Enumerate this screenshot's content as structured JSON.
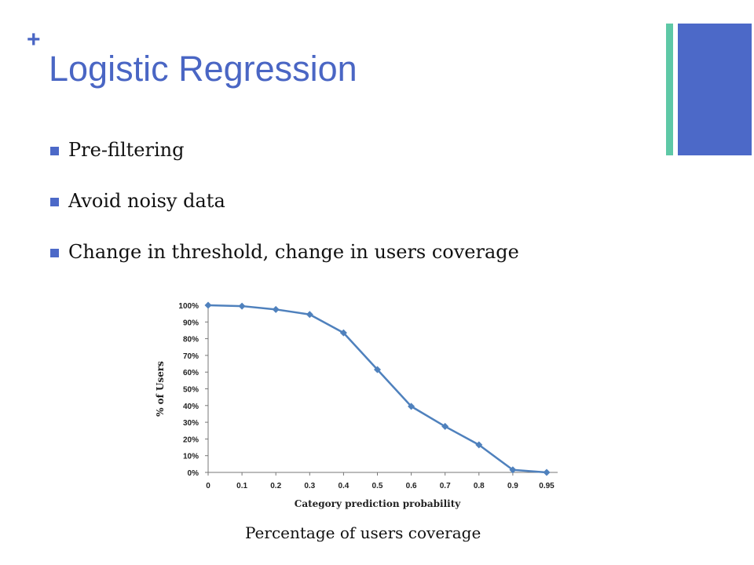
{
  "slide": {
    "marker": "+",
    "title": "Logistic Regression",
    "accent_colors": {
      "teal": "#5ec8a6",
      "blue": "#4c69c8",
      "title": "#4a66c4"
    },
    "bullets": [
      {
        "text": "Pre-filtering"
      },
      {
        "text": "Avoid noisy data"
      },
      {
        "text": "Change in threshold, change in users coverage"
      }
    ],
    "caption": "Percentage of users coverage"
  },
  "chart_data": {
    "type": "line",
    "title": "",
    "xlabel": "Category prediction  probability",
    "ylabel": "% of Users",
    "categories": [
      "0",
      "0.1",
      "0.2",
      "0.3",
      "0.4",
      "0.5",
      "0.6",
      "0.7",
      "0.8",
      "0.9",
      "0.95"
    ],
    "y_ticks": [
      "0%",
      "10%",
      "20%",
      "30%",
      "40%",
      "50%",
      "60%",
      "70%",
      "80%",
      "90%",
      "100%"
    ],
    "ylim": [
      0,
      100
    ],
    "grid": false,
    "series": [
      {
        "color": "#4f81bd",
        "values": [
          100,
          99.5,
          97.5,
          94.5,
          83.5,
          61.5,
          39.5,
          27.5,
          16.5,
          1.5,
          0
        ]
      }
    ]
  }
}
